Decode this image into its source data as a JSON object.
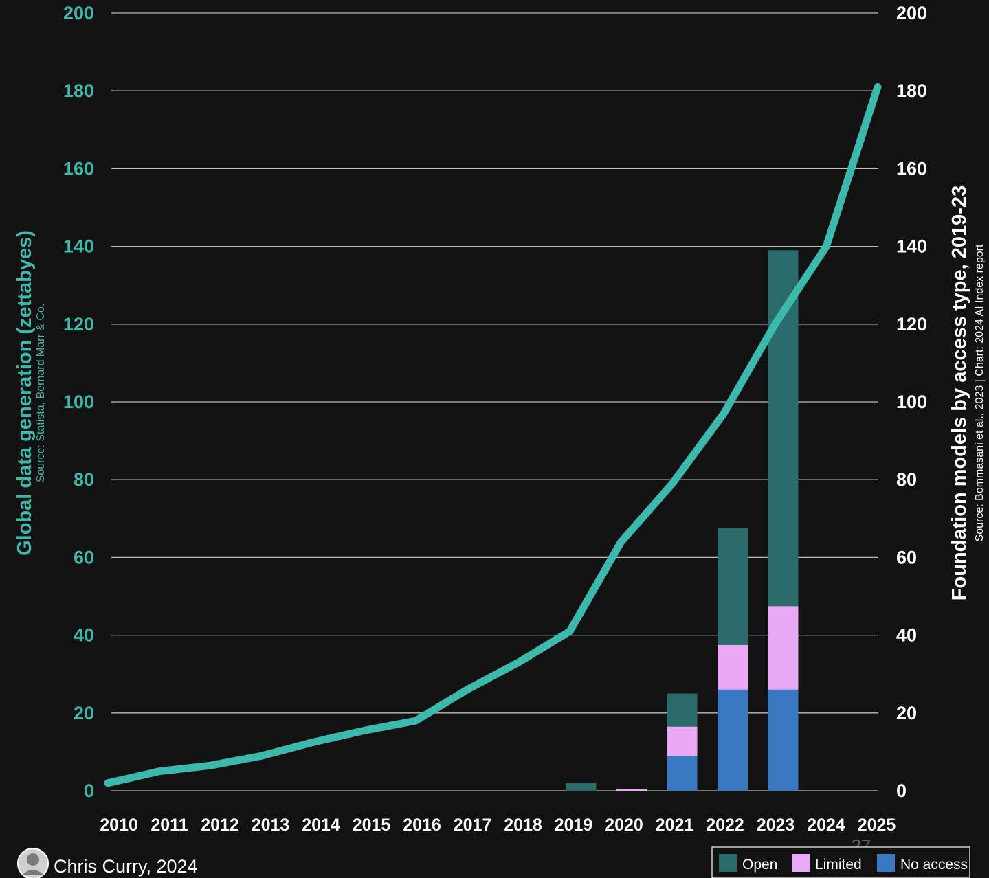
{
  "chart_data": {
    "type": "bar",
    "categories": [
      "2010",
      "2011",
      "2012",
      "2013",
      "2014",
      "2015",
      "2016",
      "2017",
      "2018",
      "2019",
      "2020",
      "2021",
      "2022",
      "2023",
      "2024",
      "2025"
    ],
    "left_axis": {
      "label": "Global data generation (zettabyes)",
      "sublabel": "Source: Statista, Bernard Marr & Co.",
      "ylim": [
        0,
        200
      ],
      "ticks": [
        0,
        20,
        40,
        60,
        80,
        100,
        120,
        140,
        160,
        180,
        200
      ]
    },
    "right_axis": {
      "label": "Foundation models by access type, 2019-23",
      "sublabel": "Source: Bommasani et al., 2023 | Chart: 2024 AI Index report",
      "ylim": [
        0,
        200
      ],
      "ticks": [
        0,
        20,
        40,
        60,
        80,
        100,
        120,
        140,
        160,
        180,
        200
      ]
    },
    "line_series": {
      "name": "Global data generation (zettabyes)",
      "color": "#3cb8ac",
      "x": [
        "2010",
        "2011",
        "2012",
        "2013",
        "2014",
        "2015",
        "2016",
        "2017",
        "2018",
        "2019",
        "2020",
        "2021",
        "2022",
        "2023",
        "2024",
        "2025"
      ],
      "values": [
        2,
        5,
        6.5,
        9,
        12.5,
        15.5,
        18,
        26,
        33,
        41,
        64,
        79,
        97,
        120,
        140,
        181
      ]
    },
    "bar_series": [
      {
        "name": "No access",
        "color": "#3a78c2",
        "x": [
          "2019",
          "2020",
          "2021",
          "2022",
          "2023"
        ],
        "values": [
          0,
          0,
          9,
          26,
          26
        ]
      },
      {
        "name": "Limited",
        "color": "#e9a9f5",
        "x": [
          "2019",
          "2020",
          "2021",
          "2022",
          "2023"
        ],
        "values": [
          0,
          0.5,
          7.5,
          11.5,
          21.5
        ]
      },
      {
        "name": "Open",
        "color": "#2a6a6a",
        "x": [
          "2019",
          "2020",
          "2021",
          "2022",
          "2023"
        ],
        "values": [
          2,
          0,
          8.5,
          30,
          91.5
        ]
      }
    ],
    "legend": {
      "placement": "bottom-right",
      "items": [
        "Open",
        "Limited",
        "No access"
      ]
    },
    "grid": true
  },
  "credit": "Chris Curry, 2024",
  "page_number": "27",
  "colors": {
    "background": "#121212",
    "left_axis_text": "#3cb8ac",
    "right_axis_text": "#ffffff",
    "grid": "#bdbdbd"
  }
}
